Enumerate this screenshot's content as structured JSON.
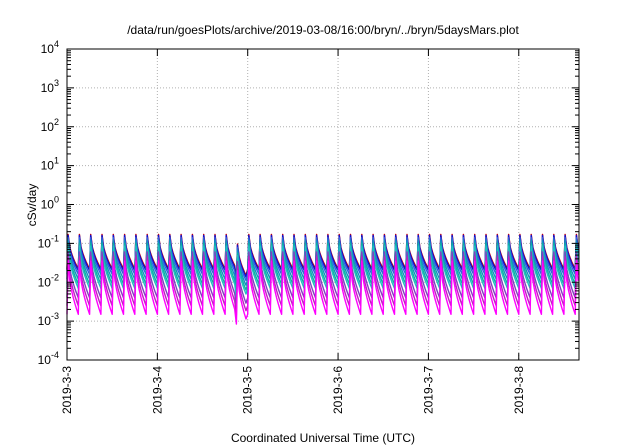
{
  "chart_data": {
    "type": "line",
    "title": "/data/run/goesPlots/archive/2019-03-08/16:00/bryn/../bryn/5daysMars.plot",
    "xlabel": "Coordinated Universal Time (UTC)",
    "ylabel": "cSv/day",
    "yscale": "log",
    "ylim": [
      0.0001,
      10000
    ],
    "xlim": [
      "2019-03-03 00:00",
      "2019-03-08 16:00"
    ],
    "grid": true,
    "legend": "none",
    "x_ticks": [
      "2019-3-3",
      "2019-3-4",
      "2019-3-5",
      "2019-3-6",
      "2019-3-7",
      "2019-3-8"
    ],
    "y_ticks": [
      {
        "value": 0.0001,
        "base": "10",
        "exp": "-4"
      },
      {
        "value": 0.001,
        "base": "10",
        "exp": "-3"
      },
      {
        "value": 0.01,
        "base": "10",
        "exp": "-2"
      },
      {
        "value": 0.1,
        "base": "10",
        "exp": "-1"
      },
      {
        "value": 1,
        "base": "10",
        "exp": "0"
      },
      {
        "value": 10,
        "base": "10",
        "exp": "1"
      },
      {
        "value": 100,
        "base": "10",
        "exp": "2"
      },
      {
        "value": 1000,
        "base": "10",
        "exp": "3"
      },
      {
        "value": 10000,
        "base": "10",
        "exp": "4"
      }
    ],
    "cycles_per_day": 8,
    "series": [
      {
        "color": "#cc0000",
        "peak": 0.17,
        "trough": 0.022
      },
      {
        "color": "#1010d0",
        "peak": 0.16,
        "trough": 0.02
      },
      {
        "color": "#3060e0",
        "peak": 0.14,
        "trough": 0.016
      },
      {
        "color": "#1090c0",
        "peak": 0.12,
        "trough": 0.012
      },
      {
        "color": "#10b0a0",
        "peak": 0.1,
        "trough": 0.009
      },
      {
        "color": "#20c0c0",
        "peak": 0.085,
        "trough": 0.007
      },
      {
        "color": "#8040c0",
        "peak": 0.06,
        "trough": 0.004
      },
      {
        "color": "#c020c0",
        "peak": 0.045,
        "trough": 0.0025
      },
      {
        "color": "#ff00ff",
        "peak": 0.035,
        "trough": 0.0015
      }
    ]
  }
}
